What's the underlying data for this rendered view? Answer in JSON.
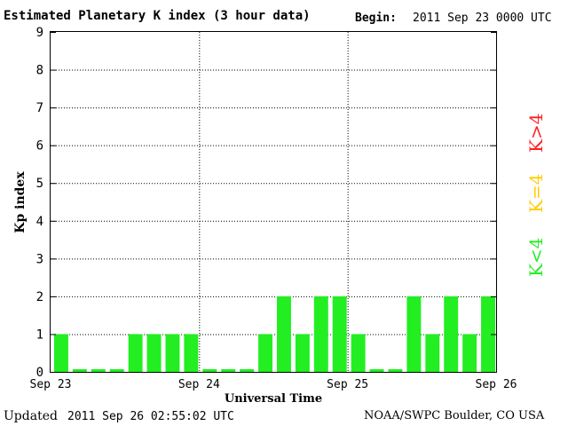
{
  "header": {
    "title": "Estimated Planetary K index (3 hour data)",
    "begin_label": "Begin:",
    "begin_value": "2011 Sep 23 0000 UTC"
  },
  "footer": {
    "updated_label": "Updated",
    "updated_value": "2011 Sep 26 02:55:02 UTC",
    "credit": "NOAA/SWPC Boulder, CO USA"
  },
  "legend": {
    "high": "K>4",
    "equal": "K=4",
    "low": "K<4"
  },
  "colors": {
    "bar_low": "#22ee22",
    "high": "#ff2020",
    "equal": "#ffcc00",
    "low": "#22ee22"
  },
  "chart_data": {
    "type": "bar",
    "title": "Estimated Planetary K index (3 hour data)",
    "xlabel": "Universal Time",
    "ylabel": "Kp index",
    "ylim": [
      0,
      9
    ],
    "yticks": [
      0,
      1,
      2,
      3,
      4,
      5,
      6,
      7,
      8,
      9
    ],
    "xtick_labels": [
      "Sep 23",
      "Sep 24",
      "Sep 25",
      "Sep 26"
    ],
    "grid": true,
    "values": [
      1,
      0,
      0,
      0,
      1,
      1,
      1,
      1,
      0,
      0,
      0,
      1,
      2,
      1,
      2,
      2,
      1,
      0,
      0,
      2,
      1,
      2,
      1,
      2
    ]
  }
}
